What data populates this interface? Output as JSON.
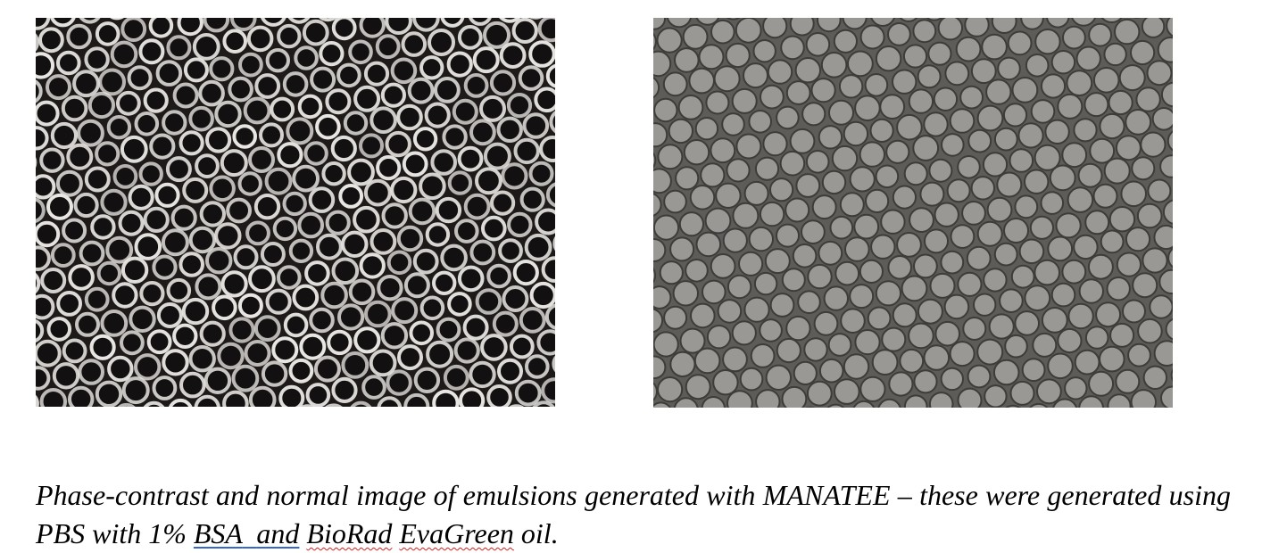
{
  "images": {
    "phase_contrast": {
      "icon": "phase-contrast-micrograph",
      "background": "#1e1a1a",
      "droplet_fill": "#121010",
      "droplet_rim": "#e8e6e2"
    },
    "normal": {
      "icon": "brightfield-micrograph",
      "background": "#5e5c58",
      "droplet_fill": "#9a9894",
      "droplet_rim": "#3e3c3a"
    }
  },
  "caption": {
    "part1": "Phase-contrast and normal image of emulsions generated with MANATEE – these were generated using PBS with 1% ",
    "bsa": "BSA",
    "gap": "  ",
    "and": "and",
    "space1": " ",
    "biorad": "BioRad",
    "space2": " ",
    "evagreen": "EvaGreen",
    "end": " oil."
  },
  "colors": {
    "text": "#000000",
    "link_underline": "#3a66c8",
    "spell_underline": "#d02020"
  }
}
